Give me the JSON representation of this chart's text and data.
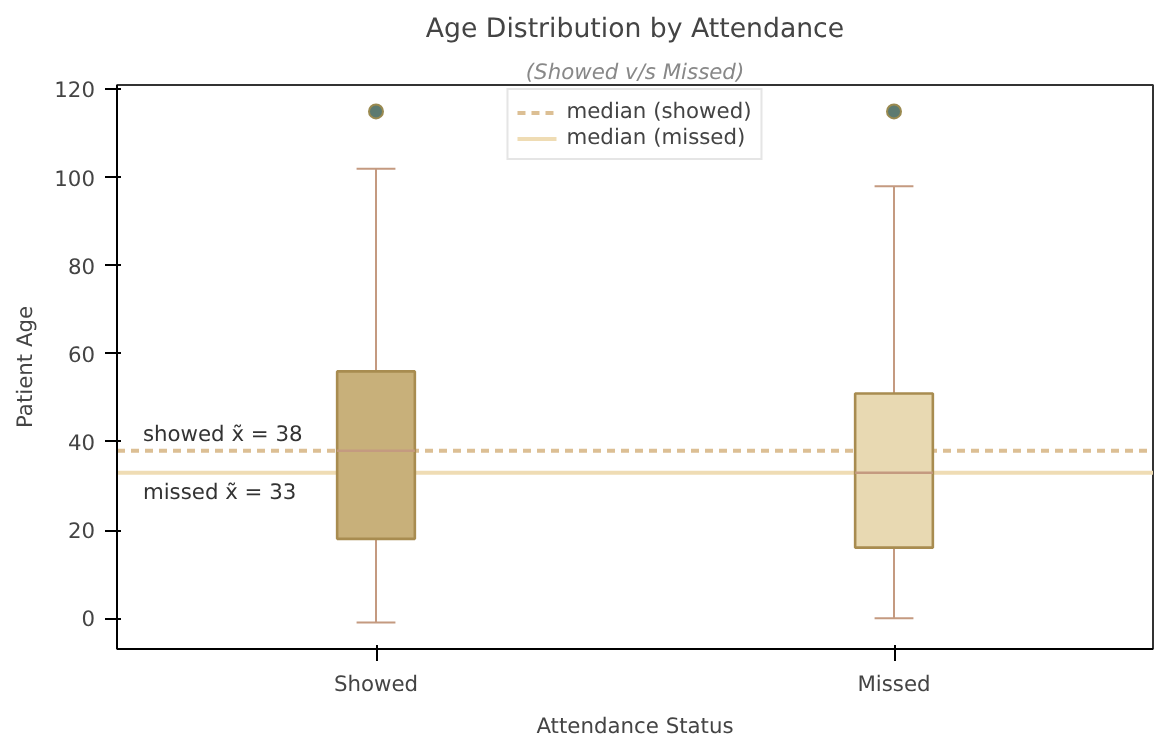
{
  "chart_data": {
    "type": "box",
    "title": "Age Distribution by Attendance",
    "subtitle": "(Showed v/s Missed)",
    "xlabel": "Attendance Status",
    "ylabel": "Patient Age",
    "categories": [
      "Showed",
      "Missed"
    ],
    "boxes": [
      {
        "low": -1,
        "q1": 18,
        "median": 38,
        "q3": 56,
        "high": 102,
        "outliers": [
          115
        ]
      },
      {
        "low": 0,
        "q1": 16,
        "median": 33,
        "q3": 51,
        "high": 98,
        "outliers": [
          115
        ]
      }
    ],
    "colors": [
      "#c8b07a",
      "#e8d9b2"
    ],
    "ylim": [
      -7,
      121
    ],
    "yticks": [
      0,
      20,
      40,
      60,
      80,
      100,
      120
    ],
    "ref_lines": [
      {
        "axis": "y",
        "value": 38,
        "label": "median (showed)",
        "color": "#dcbf94",
        "line_style": "dashed"
      },
      {
        "axis": "y",
        "value": 33,
        "label": "median (missed)",
        "color": "#efdcb4",
        "line_style": "solid"
      }
    ],
    "annotations": [
      {
        "text": "showed x̃ = 38",
        "y": 38
      },
      {
        "text": "missed x̃ = 33",
        "y": 33
      }
    ],
    "legend": "top",
    "grid": false
  }
}
